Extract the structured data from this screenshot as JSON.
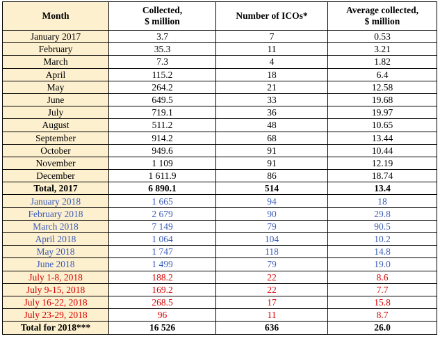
{
  "headers": [
    "Month",
    "Collected,\n$ million",
    "Number of ICOs*",
    "Average collected,\n$ million"
  ],
  "header_lines": {
    "month": "Month",
    "collected_1": "Collected,",
    "collected_2": "$ million",
    "icos": "Number of ICOs*",
    "average_1": "Average collected,",
    "average_2": "$ million"
  },
  "colors": {
    "month_column_bg": "#fdf0cf",
    "blue_rows": "#3b5cb8",
    "red_rows": "#d60000"
  },
  "rows": [
    {
      "month": "January 2017",
      "collected": "3.7",
      "icos": "7",
      "average": "0.53",
      "group": "y2017"
    },
    {
      "month": "February",
      "collected": "35.3",
      "icos": "11",
      "average": "3.21",
      "group": "y2017"
    },
    {
      "month": "March",
      "collected": "7.3",
      "icos": "4",
      "average": "1.82",
      "group": "y2017"
    },
    {
      "month": "April",
      "collected": "115.2",
      "icos": "18",
      "average": "6.4",
      "group": "y2017"
    },
    {
      "month": "May",
      "collected": "264.2",
      "icos": "21",
      "average": "12.58",
      "group": "y2017"
    },
    {
      "month": "June",
      "collected": "649.5",
      "icos": "33",
      "average": "19.68",
      "group": "y2017"
    },
    {
      "month": "July",
      "collected": "719.1",
      "icos": "36",
      "average": "19.97",
      "group": "y2017"
    },
    {
      "month": "August",
      "collected": "511.2",
      "icos": "48",
      "average": "10.65",
      "group": "y2017"
    },
    {
      "month": "September",
      "collected": "914.2",
      "icos": "68",
      "average": "13.44",
      "group": "y2017"
    },
    {
      "month": "October",
      "collected": "949.6",
      "icos": "91",
      "average": "10.44",
      "group": "y2017"
    },
    {
      "month": "November",
      "collected": "1 109",
      "icos": "91",
      "average": "12.19",
      "group": "y2017"
    },
    {
      "month": "December",
      "collected": "1 611.9",
      "icos": "86",
      "average": "18.74",
      "group": "y2017"
    },
    {
      "month": "Total, 2017",
      "collected": "6 890.1",
      "icos": "514",
      "average": "13.4",
      "group": "total"
    },
    {
      "month": "January 2018",
      "collected": "1 665",
      "icos": "94",
      "average": "18",
      "group": "y2018"
    },
    {
      "month": "February 2018",
      "collected": "2 679",
      "icos": "90",
      "average": "29.8",
      "group": "y2018"
    },
    {
      "month": "March 2018",
      "collected": "7 149",
      "icos": "79",
      "average": "90.5",
      "group": "y2018"
    },
    {
      "month": "April 2018",
      "collected": "1 064",
      "icos": "104",
      "average": "10.2",
      "group": "y2018"
    },
    {
      "month": "May 2018",
      "collected": "1 747",
      "icos": "118",
      "average": "14.8",
      "group": "y2018"
    },
    {
      "month": "June 2018",
      "collected": "1 499",
      "icos": "79",
      "average": "19.0",
      "group": "y2018"
    },
    {
      "month": "July 1-8, 2018",
      "collected": "188.2",
      "icos": "22",
      "average": "8.6",
      "group": "july"
    },
    {
      "month": "July 9-15, 2018",
      "collected": "169.2",
      "icos": "22",
      "average": "7.7",
      "group": "july"
    },
    {
      "month": "July 16-22, 2018",
      "collected": "268.5",
      "icos": "17",
      "average": "15.8",
      "group": "july"
    },
    {
      "month": "July 23-29, 2018",
      "collected": "96",
      "icos": "11",
      "average": "8.7",
      "group": "july"
    },
    {
      "month": "Total for 2018***",
      "collected": "16 526",
      "icos": "636",
      "average": "26.0",
      "group": "total"
    }
  ]
}
